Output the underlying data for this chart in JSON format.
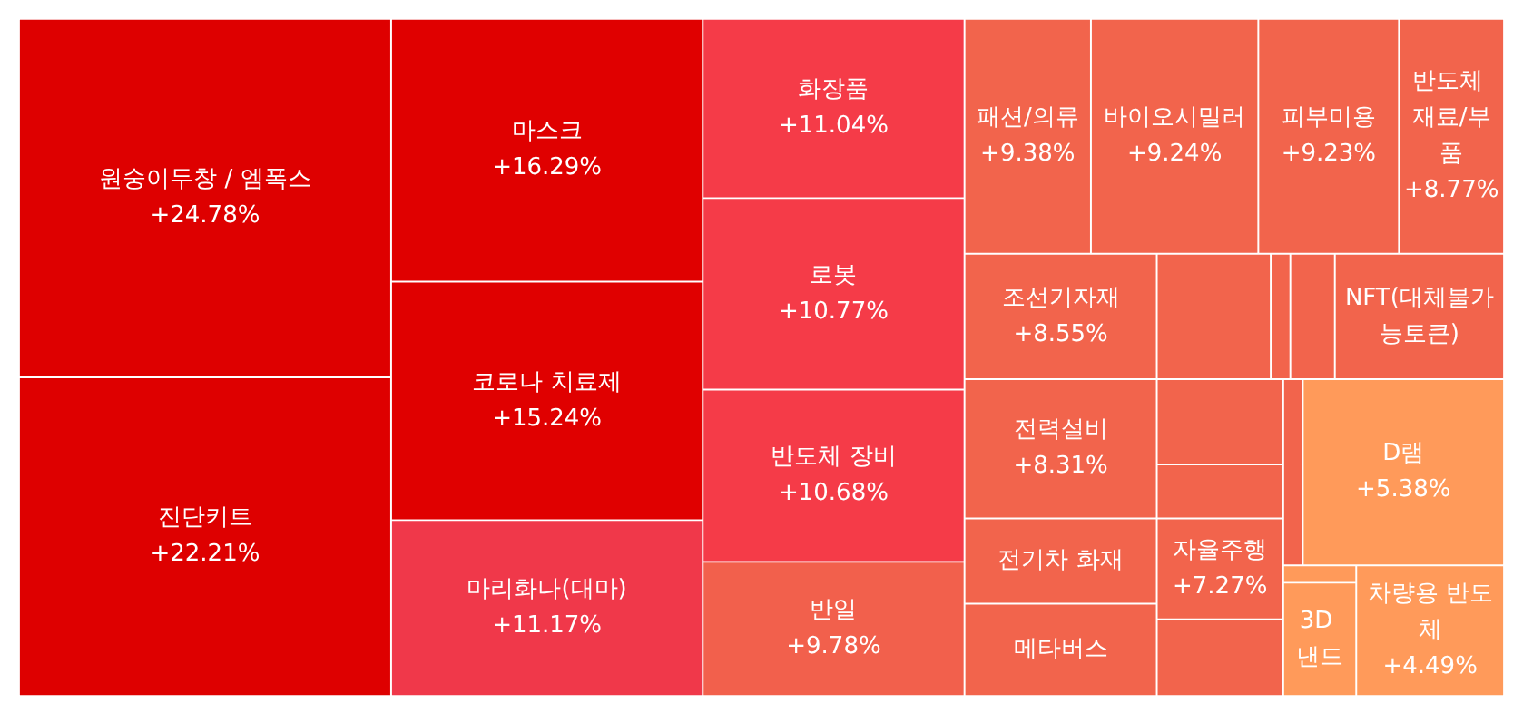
{
  "chart_data": {
    "type": "other",
    "categories": [
      "원숭이두창 / 엠폭스",
      "진단키트",
      "마스크",
      "코로나 치료제",
      "마리화나(대마)",
      "화장품",
      "로봇",
      "반도체 장비",
      "반일",
      "패션/의류",
      "바이오시밀러",
      "피부미용",
      "반도체 재료/부품",
      "조선기자재",
      null,
      null,
      null,
      "NFT(대체불가능토큰)",
      "전력설비",
      null,
      null,
      null,
      "D램",
      "전기차 화재",
      "자율주행",
      "메타버스",
      null,
      null,
      "3D 낸드",
      "차량용 반도체"
    ],
    "values": [
      24.78,
      22.21,
      16.29,
      15.24,
      11.17,
      11.04,
      10.77,
      10.68,
      9.78,
      9.38,
      9.24,
      9.23,
      8.77,
      8.55,
      null,
      null,
      null,
      null,
      8.31,
      null,
      null,
      null,
      5.38,
      null,
      7.27,
      null,
      null,
      null,
      null,
      4.49
    ],
    "value_labels": [
      "+24.78%",
      "+22.21%",
      "+16.29%",
      "+15.24%",
      "+11.17%",
      "+11.04%",
      "+10.77%",
      "+10.68%",
      "+9.78%",
      "+9.38%",
      "+9.24%",
      "+9.23%",
      "+8.77%",
      "+8.55%",
      null,
      null,
      null,
      null,
      "+8.31%",
      null,
      null,
      null,
      "+5.38%",
      null,
      "+7.27%",
      null,
      null,
      null,
      null,
      "+4.49%"
    ],
    "colors": [
      "#de0000",
      "#de0000",
      "#e00000",
      "#e00000",
      "#f0384a",
      "#f53b48",
      "#f53b48",
      "#f53b48",
      "#f2604c",
      "#f2644c",
      "#f2644c",
      "#f2644c",
      "#f2644c",
      "#f2644c",
      "#f2644c",
      "#f2644c",
      "#f2644c",
      "#f2644c",
      "#f2644c",
      "#f2644c",
      "#f2644c",
      "#f2644c",
      "#ff9a5a",
      "#f2644c",
      "#f2644c",
      "#f2644c",
      "#f2644c",
      "#ff9a5a",
      "#ff9a5a",
      "#ff9a5a"
    ]
  }
}
